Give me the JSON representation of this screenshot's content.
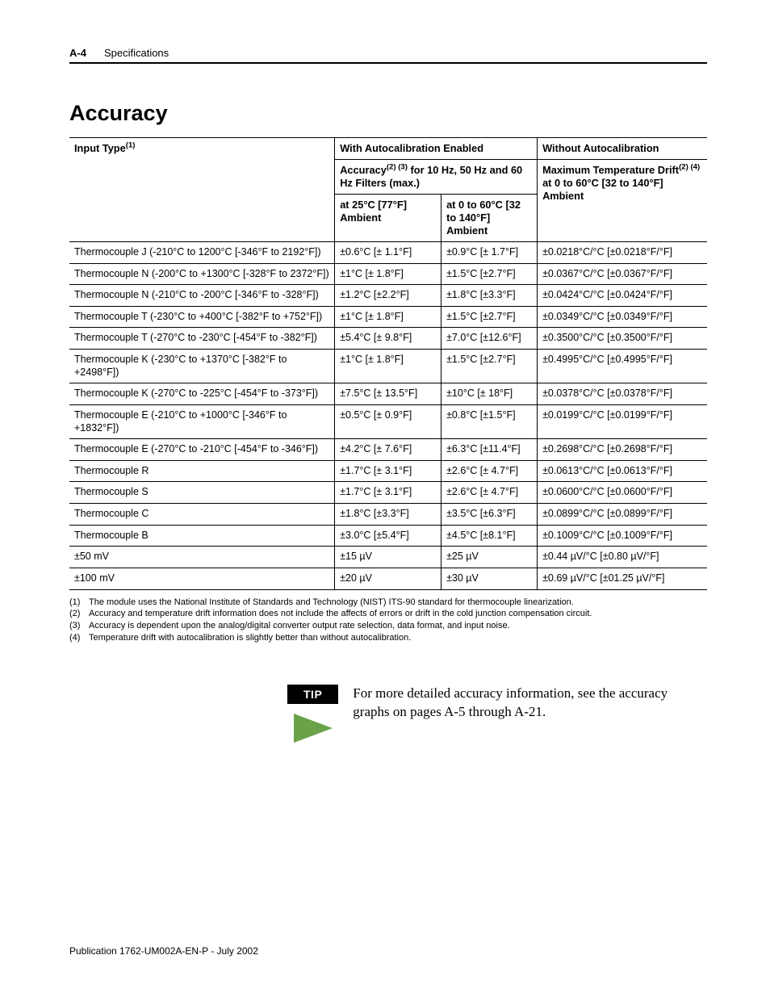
{
  "header": {
    "page_label": "A-4",
    "section": "Specifications"
  },
  "title": "Accuracy",
  "table": {
    "head": {
      "input_type": "Input Type",
      "input_type_sup": "(1)",
      "with_autocal": "With Autocalibration Enabled",
      "without_autocal": "Without Autocalibration",
      "accuracy_prefix": "Accuracy",
      "accuracy_sup": "(2) (3)",
      "accuracy_suffix": " for 10 Hz, 50 Hz and 60 Hz Filters (max.)",
      "drift_prefix": "Maximum Temperature Drift",
      "drift_sup": "(2) (4)",
      "at25": "at 25°C [77°F] Ambient",
      "at060": "at 0 to 60°C [32 to 140°F] Ambient",
      "drift_at": "at 0 to 60°C [32 to 140°F] Ambient"
    },
    "rows": [
      {
        "input": "Thermocouple J (-210°C to 1200°C [-346°F to 2192°F])",
        "a25": "±0.6°C [± 1.1°F]",
        "a060": "±0.9°C [± 1.7°F]",
        "drift": "±0.0218°C/°C [±0.0218°F/°F]"
      },
      {
        "input": "Thermocouple N (-200°C to +1300°C [-328°F to 2372°F])",
        "a25": "±1°C [± 1.8°F]",
        "a060": "±1.5°C [±2.7°F]",
        "drift": "±0.0367°C/°C [±0.0367°F/°F]"
      },
      {
        "input": "Thermocouple N (-210°C to -200°C [-346°F to -328°F])",
        "a25": "±1.2°C [±2.2°F]",
        "a060": "±1.8°C [±3.3°F]",
        "drift": "±0.0424°C/°C [±0.0424°F/°F]"
      },
      {
        "input": "Thermocouple T (-230°C to +400°C [-382°F to +752°F])",
        "a25": "±1°C [± 1.8°F]",
        "a060": "±1.5°C [±2.7°F]",
        "drift": "±0.0349°C/°C [±0.0349°F/°F]"
      },
      {
        "input": "Thermocouple T (-270°C to -230°C [-454°F to -382°F])",
        "a25": "±5.4°C [± 9.8°F]",
        "a060": "±7.0°C [±12.6°F]",
        "drift": "±0.3500°C/°C [±0.3500°F/°F]"
      },
      {
        "input": "Thermocouple K (-230°C to +1370°C [-382°F to +2498°F])",
        "a25": "±1°C [± 1.8°F]",
        "a060": "±1.5°C [±2.7°F]",
        "drift": "±0.4995°C/°C [±0.4995°F/°F]"
      },
      {
        "input": "Thermocouple K (-270°C to -225°C [-454°F to -373°F])",
        "a25": "±7.5°C [± 13.5°F]",
        "a060": "±10°C [± 18°F]",
        "drift": "±0.0378°C/°C [±0.0378°F/°F]"
      },
      {
        "input": "Thermocouple E (-210°C to +1000°C [-346°F to +1832°F])",
        "a25": "±0.5°C [± 0.9°F]",
        "a060": "±0.8°C [±1.5°F]",
        "drift": "±0.0199°C/°C [±0.0199°F/°F]"
      },
      {
        "input": "Thermocouple E (-270°C to -210°C [-454°F to -346°F])",
        "a25": "±4.2°C [± 7.6°F]",
        "a060": "±6.3°C [±11.4°F]",
        "drift": "±0.2698°C/°C [±0.2698°F/°F]"
      },
      {
        "input": "Thermocouple R",
        "a25": "±1.7°C [± 3.1°F]",
        "a060": "±2.6°C [± 4.7°F]",
        "drift": "±0.0613°C/°C [±0.0613°F/°F]"
      },
      {
        "input": "Thermocouple S",
        "a25": "±1.7°C [± 3.1°F]",
        "a060": "±2.6°C [± 4.7°F]",
        "drift": "±0.0600°C/°C [±0.0600°F/°F]"
      },
      {
        "input": "Thermocouple C",
        "a25": "±1.8°C [±3.3°F]",
        "a060": "±3.5°C [±6.3°F]",
        "drift": "±0.0899°C/°C [±0.0899°F/°F]"
      },
      {
        "input": "Thermocouple B",
        "a25": "±3.0°C [±5.4°F]",
        "a060": "±4.5°C [±8.1°F]",
        "drift": "±0.1009°C/°C [±0.1009°F/°F]"
      },
      {
        "input": "±50 mV",
        "a25": "±15 µV",
        "a060": "±25 µV",
        "drift": "±0.44 µV/°C [±0.80 µV/°F]"
      },
      {
        "input": "±100 mV",
        "a25": "±20 µV",
        "a060": "±30 µV",
        "drift": "±0.69 µV/°C [±01.25 µV/°F]"
      }
    ]
  },
  "footnotes": {
    "1": "The module uses the National Institute of Standards and Technology (NIST) ITS-90 standard for thermocouple linearization.",
    "2": "Accuracy and temperature drift information does not include the affects of errors or drift in the cold junction compensation circuit.",
    "3": "Accuracy is dependent upon the analog/digital converter output rate selection, data format, and input noise.",
    "4": "Temperature drift with autocalibration is slightly better than without autocalibration."
  },
  "tip": {
    "label": "TIP",
    "arrow_color": "#6aa24a",
    "text": "For more detailed accuracy information, see the accuracy graphs on pages A-5 through A-21."
  },
  "publication": "Publication 1762-UM002A-EN-P - July 2002"
}
